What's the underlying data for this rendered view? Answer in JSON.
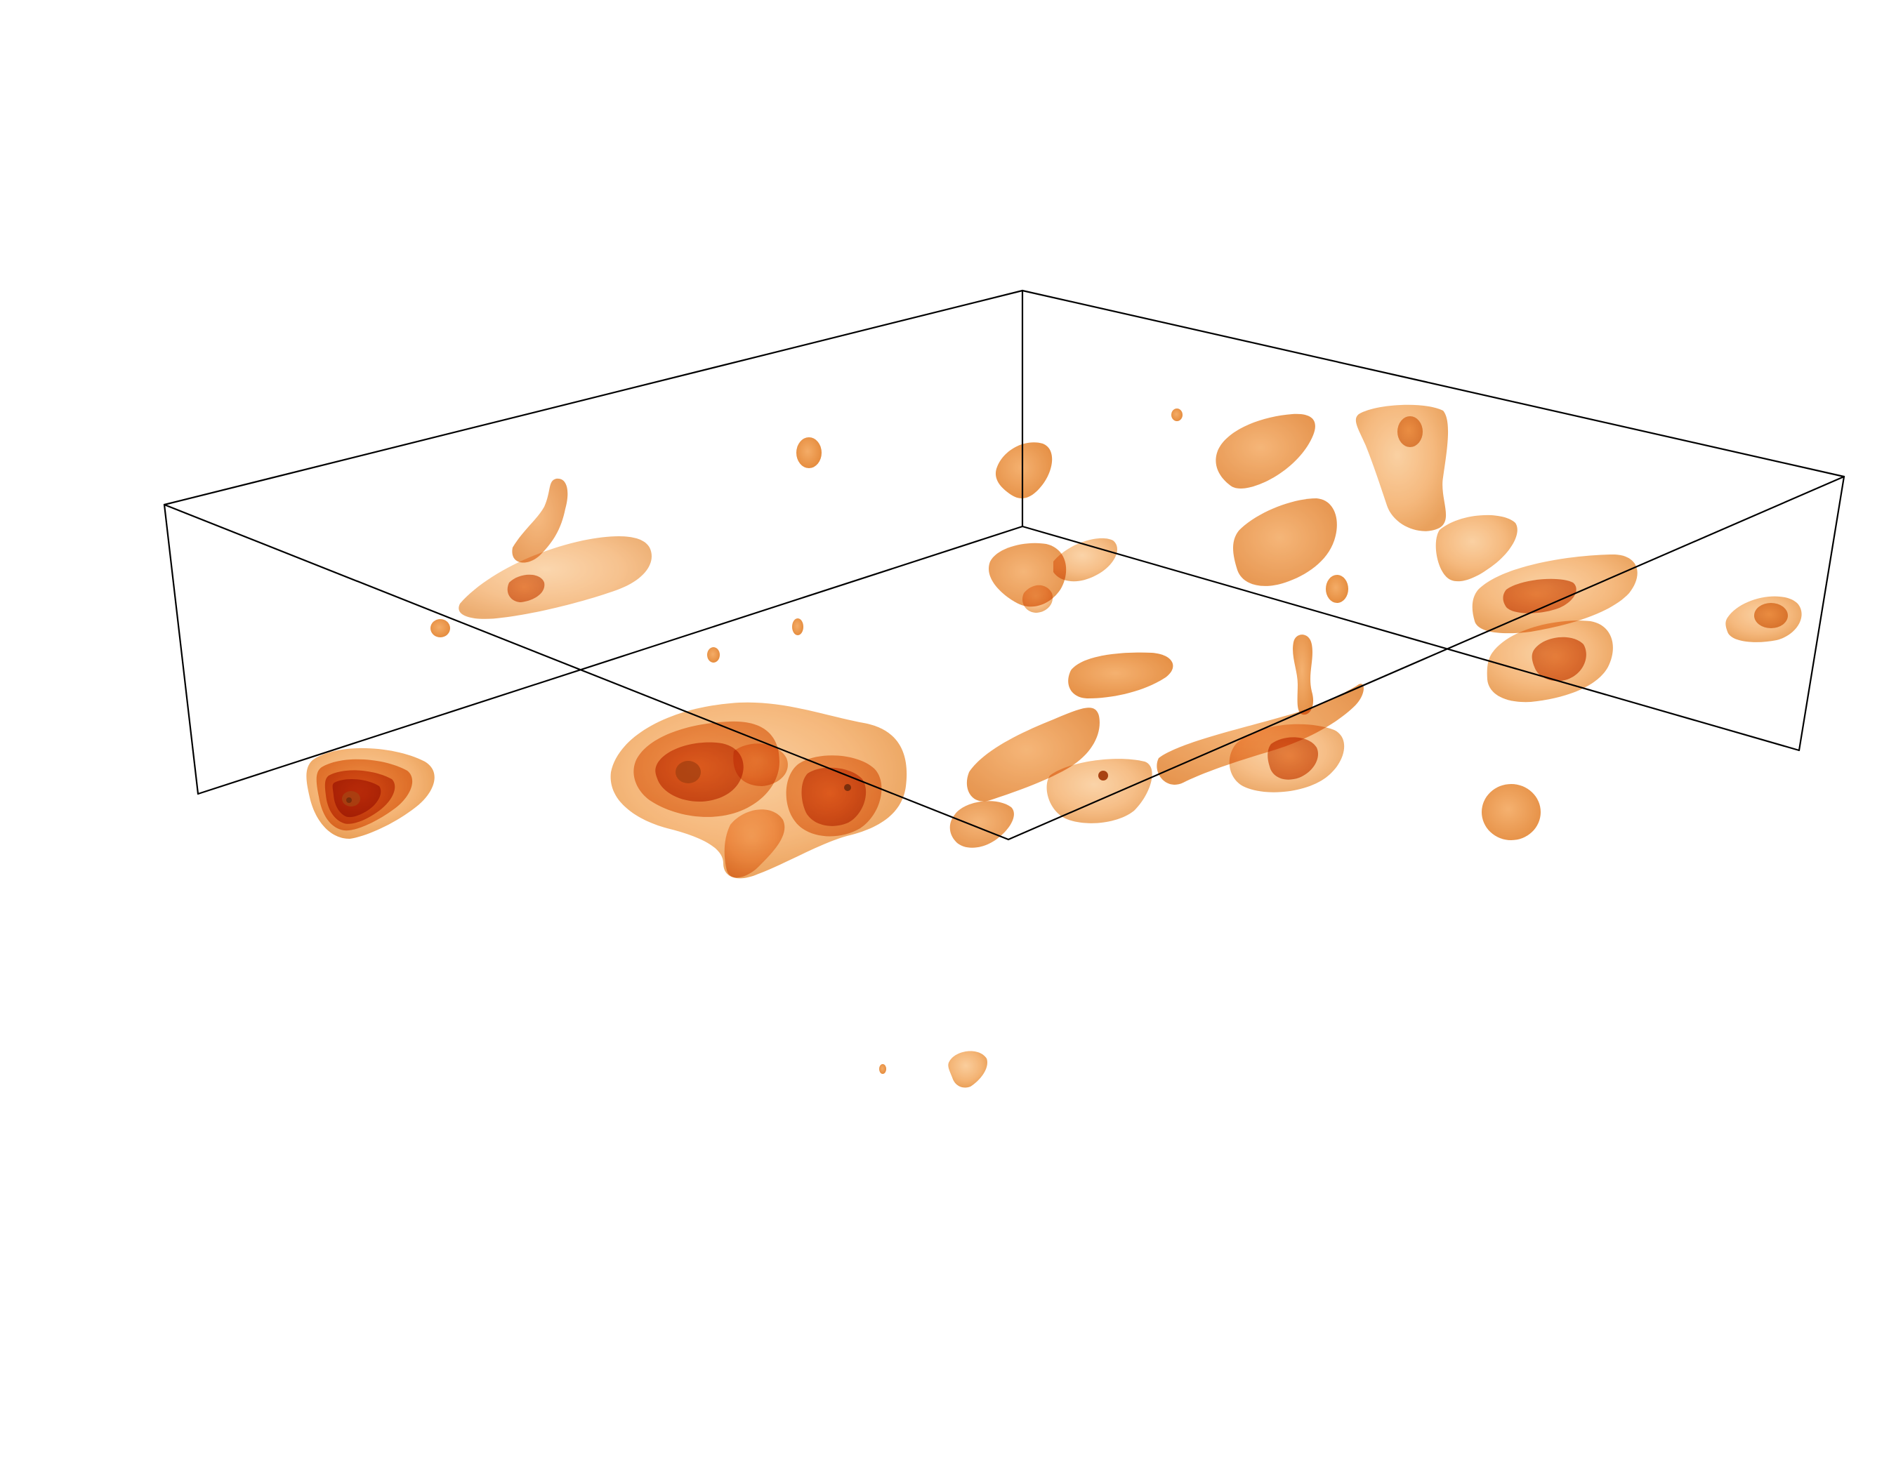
{
  "figure": {
    "kind": "3d-isosurface-render",
    "background_color": "#ffffff",
    "box_edge_color": "#000000",
    "isosurface_colors": {
      "outer": "#f6b06a",
      "mid": "#ee9a48",
      "inner": "#e37a26",
      "core": "#c9541a"
    },
    "blob_count": 40
  }
}
